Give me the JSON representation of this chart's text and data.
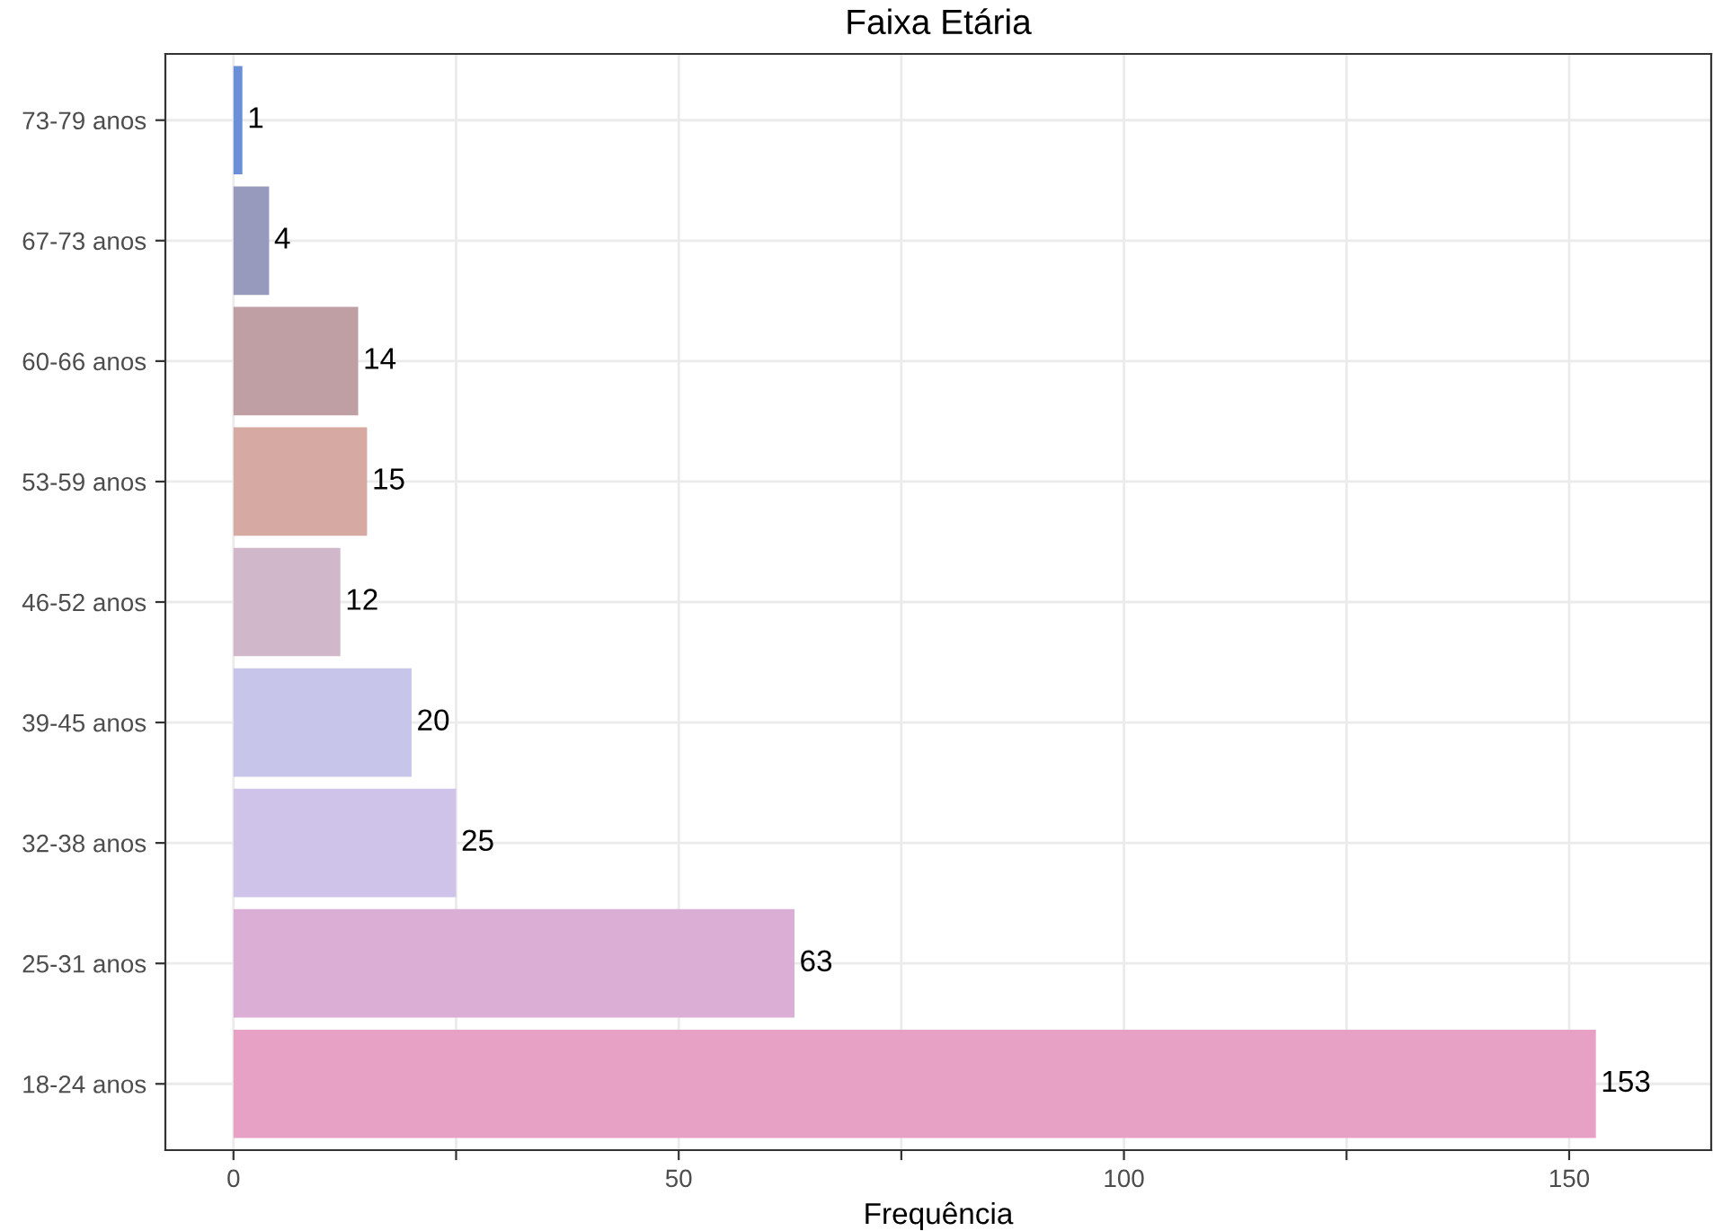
{
  "chart_data": {
    "type": "bar",
    "orientation": "horizontal",
    "title": "Faixa Etária",
    "xlabel": "Frequência",
    "categories": [
      "73-79 anos",
      "67-73 anos",
      "60-66 anos",
      "53-59 anos",
      "46-52 anos",
      "39-45 anos",
      "32-38 anos",
      "25-31 anos",
      "18-24 anos"
    ],
    "values": [
      1,
      4,
      14,
      15,
      12,
      20,
      25,
      63,
      153
    ],
    "colors": [
      "#6b8fd6",
      "#9799bd",
      "#bf9ea4",
      "#d6a9a2",
      "#d0b7c9",
      "#c8c5ea",
      "#cfc3e9",
      "#dbaed6",
      "#e6a1c4"
    ],
    "data_labels": true,
    "xlim": [
      -7.65,
      165.95
    ],
    "xticks": [
      0,
      {
        "value": 25,
        "label": null
      },
      50,
      {
        "value": 75,
        "label": null
      },
      100,
      {
        "value": 125,
        "label": null
      },
      150
    ],
    "grid": true,
    "legend": false
  }
}
